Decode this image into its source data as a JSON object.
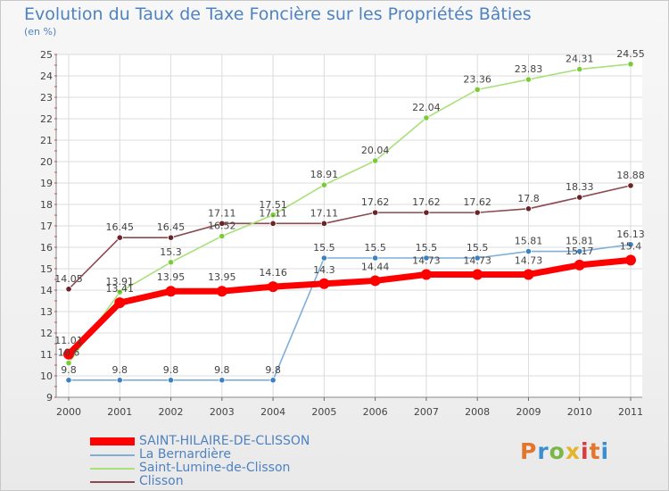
{
  "header": {
    "title": "Evolution du Taux de Taxe Foncière sur les Propriétés Bâties",
    "unit": "(en %)"
  },
  "logo": {
    "text": "Proxiti",
    "colors": [
      "#e2762c",
      "#3b8fd0",
      "#7ab648",
      "#e2b52c",
      "#d93b3b"
    ]
  },
  "chart_data": {
    "type": "line",
    "x": [
      "2000",
      "2001",
      "2002",
      "2003",
      "2004",
      "2005",
      "2006",
      "2007",
      "2008",
      "2009",
      "2010",
      "2011"
    ],
    "ylim": [
      9,
      25
    ],
    "yticks": [
      "9",
      "10",
      "11",
      "12",
      "13",
      "14",
      "15",
      "16",
      "17",
      "18",
      "19",
      "20",
      "21",
      "22",
      "23",
      "24",
      "25"
    ],
    "grid": true,
    "series": [
      {
        "name": "SAINT-HILAIRE-DE-CLISSON",
        "color": "#ff0000",
        "marker": "#ff0000",
        "values": [
          11.01,
          13.41,
          13.95,
          13.95,
          14.16,
          14.3,
          14.44,
          14.73,
          14.73,
          14.73,
          15.17,
          15.4
        ],
        "labels": [
          "11.01",
          "13.41",
          "13.95",
          "13.95",
          "14.16",
          "14.3",
          "14.44",
          "14.73",
          "14.73",
          "14.73",
          "15.17",
          "15.4"
        ]
      },
      {
        "name": "La Bernardière",
        "color": "#7faed8",
        "marker": "#3b82c4",
        "values": [
          9.8,
          9.8,
          9.8,
          9.8,
          9.8,
          15.5,
          15.5,
          15.5,
          15.5,
          15.81,
          15.81,
          16.13
        ],
        "labels": [
          "9.8",
          "9.8",
          "9.8",
          "9.8",
          "9.8",
          "15.5",
          "15.5",
          "15.5",
          "15.5",
          "15.81",
          "15.81",
          "16.13"
        ]
      },
      {
        "name": "Saint-Lumine-de-Clisson",
        "color": "#a9e07a",
        "marker": "#7acb3a",
        "values": [
          10.6,
          13.91,
          15.3,
          16.52,
          17.51,
          18.91,
          20.04,
          22.04,
          23.36,
          23.83,
          24.31,
          24.55
        ],
        "labels": [
          "10.6",
          "13.91",
          "15.3",
          "16.52",
          "17.51",
          "18.91",
          "20.04",
          "22.04",
          "23.36",
          "23.83",
          "24.31",
          "24.55"
        ]
      },
      {
        "name": "Clisson",
        "color": "#8a4a50",
        "marker": "#6b2228",
        "values": [
          14.05,
          16.45,
          16.45,
          17.11,
          17.11,
          17.11,
          17.62,
          17.62,
          17.62,
          17.8,
          18.33,
          18.88
        ],
        "labels": [
          "14.05",
          "16.45",
          "16.45",
          "17.11",
          "17.11",
          "17.11",
          "17.62",
          "17.62",
          "17.62",
          "17.8",
          "18.33",
          "18.88"
        ]
      }
    ]
  }
}
